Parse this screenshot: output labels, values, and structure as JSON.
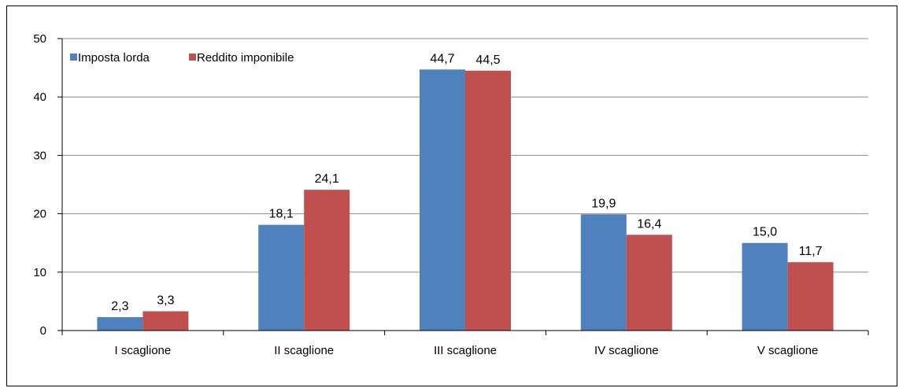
{
  "chart_data": {
    "type": "bar",
    "categories": [
      "I scaglione",
      "II scaglione",
      "III scaglione",
      "IV scaglione",
      "V scaglione"
    ],
    "series": [
      {
        "name": "Imposta lorda",
        "color": "#4f81bd",
        "values": [
          2.3,
          18.1,
          44.7,
          19.9,
          15.0
        ],
        "labels": [
          "2,3",
          "18,1",
          "44,7",
          "19,9",
          "15,0"
        ]
      },
      {
        "name": "Reddito imponibile",
        "color": "#c0504d",
        "values": [
          3.3,
          24.1,
          44.5,
          16.4,
          11.7
        ],
        "labels": [
          "3,3",
          "24,1",
          "44,5",
          "16,4",
          "11,7"
        ]
      }
    ],
    "ylim": [
      0,
      50
    ],
    "yticks": [
      0,
      10,
      20,
      30,
      40,
      50
    ],
    "ytick_labels": [
      "0",
      "10",
      "20",
      "30",
      "40",
      "50"
    ],
    "grid": true,
    "legend_position": "top-left",
    "title": "",
    "xlabel": "",
    "ylabel": ""
  }
}
